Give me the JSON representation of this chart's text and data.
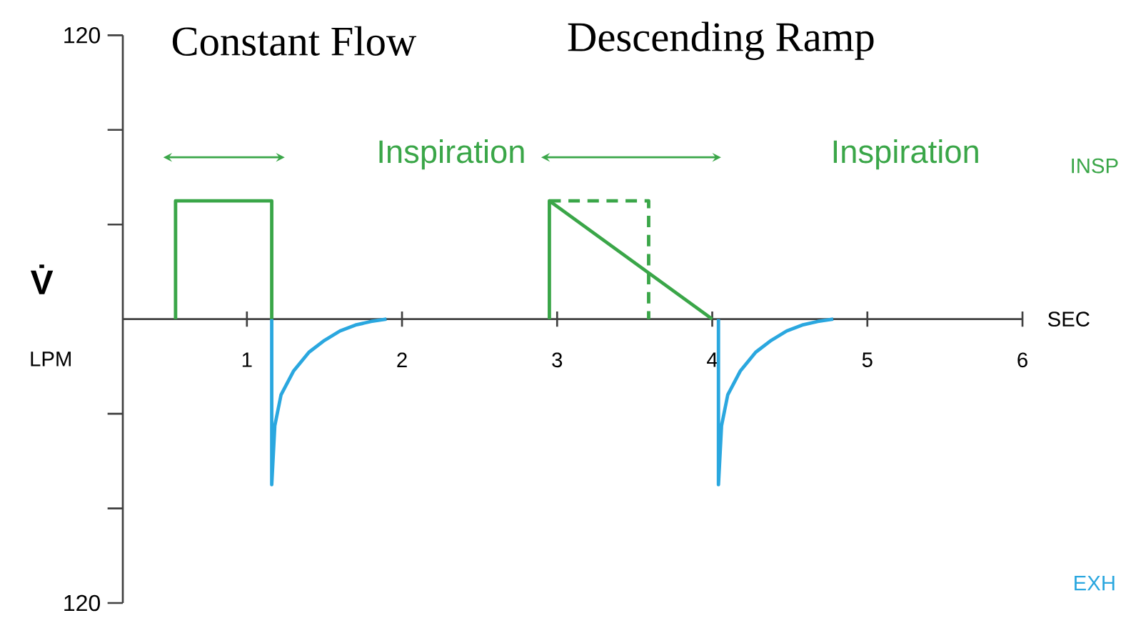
{
  "chart_data": {
    "type": "line",
    "xlabel": "SEC",
    "ylabel": "V̇",
    "xlim": [
      0.2,
      6
    ],
    "ylim": [
      -120,
      120
    ],
    "xticks": [
      1,
      2,
      3,
      4,
      5,
      6
    ],
    "yticks": [
      {
        "value": -120,
        "label": "120"
      },
      {
        "value": -80,
        "label": null
      },
      {
        "value": -40,
        "label": null
      },
      {
        "value": 40,
        "label": null
      },
      {
        "value": 80,
        "label": null
      },
      {
        "value": 120,
        "label": "120"
      }
    ],
    "series": [
      {
        "color": "#3aa648",
        "x": [
          0.54,
          0.54,
          1.16,
          1.16
        ],
        "values": [
          0,
          50,
          50,
          0
        ]
      },
      {
        "color": "#3aa648",
        "x": [
          2.95,
          2.95,
          4.0
        ],
        "values": [
          0,
          50,
          0
        ]
      },
      {
        "color": "#3aa648",
        "line_style": "dashed",
        "x": [
          2.95,
          3.59,
          3.59
        ],
        "values": [
          50,
          50,
          0
        ]
      },
      {
        "color": "#2aa7df",
        "x": [
          1.16,
          1.16,
          1.18,
          1.22,
          1.3,
          1.4,
          1.5,
          1.6,
          1.7,
          1.8,
          1.9
        ],
        "values": [
          0,
          -70,
          -45,
          -32,
          -22,
          -14,
          -9,
          -5,
          -2.5,
          -1,
          0
        ]
      },
      {
        "color": "#2aa7df",
        "x": [
          4.04,
          4.04,
          4.06,
          4.1,
          4.18,
          4.28,
          4.38,
          4.48,
          4.58,
          4.68,
          4.78
        ],
        "values": [
          0,
          -70,
          -45,
          -32,
          -22,
          -14,
          -9,
          -5,
          -2.5,
          -1,
          0
        ]
      }
    ],
    "annotations": [
      "Constant Flow",
      "Descending Ramp",
      "Inspiration",
      "Inspiration",
      "INSP",
      "EXH",
      "LPM"
    ]
  }
}
